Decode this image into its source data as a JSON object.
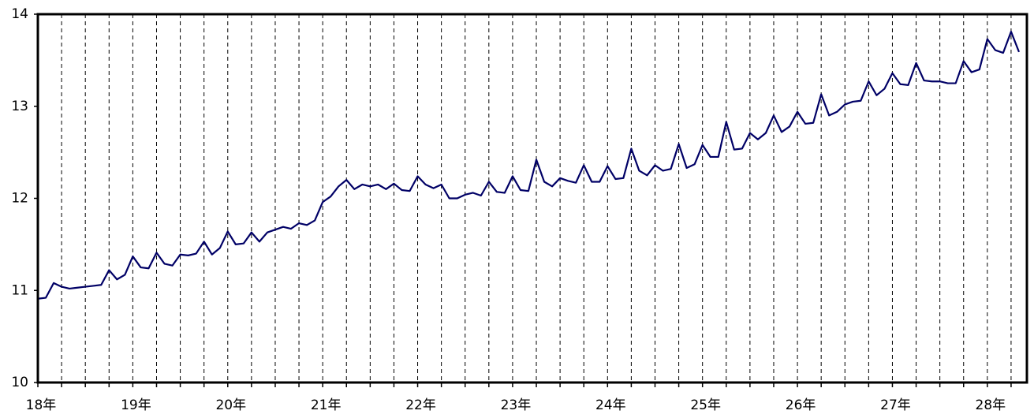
{
  "chart_data": {
    "type": "line",
    "categories": [
      "18年",
      null,
      null,
      null,
      null,
      null,
      null,
      null,
      null,
      null,
      null,
      null,
      "19年",
      null,
      null,
      null,
      null,
      null,
      null,
      null,
      null,
      null,
      null,
      null,
      "20年",
      null,
      null,
      null,
      null,
      null,
      null,
      null,
      null,
      null,
      null,
      null,
      "21年",
      null,
      null,
      null,
      null,
      null,
      null,
      null,
      null,
      null,
      null,
      null,
      "22年",
      null,
      null,
      null,
      null,
      null,
      null,
      null,
      null,
      null,
      null,
      null,
      "23年",
      null,
      null,
      null,
      null,
      null,
      null,
      null,
      null,
      null,
      null,
      null,
      "24年",
      null,
      null,
      null,
      null,
      null,
      null,
      null,
      null,
      null,
      null,
      null,
      "25年",
      null,
      null,
      null,
      null,
      null,
      null,
      null,
      null,
      null,
      null,
      null,
      "26年",
      null,
      null,
      null,
      null,
      null,
      null,
      null,
      null,
      null,
      null,
      null,
      "27年",
      null,
      null,
      null,
      null,
      null,
      null,
      null,
      null,
      null,
      null,
      null,
      "28年",
      null,
      null,
      null,
      null
    ],
    "series": [
      {
        "color": "#000066",
        "values": [
          10.91,
          10.92,
          11.08,
          11.04,
          11.02,
          11.03,
          11.04,
          11.05,
          11.06,
          11.22,
          11.12,
          11.17,
          11.37,
          11.25,
          11.24,
          11.41,
          11.29,
          11.27,
          11.39,
          11.38,
          11.4,
          11.53,
          11.39,
          11.46,
          11.64,
          11.5,
          11.51,
          11.63,
          11.53,
          11.63,
          11.66,
          11.69,
          11.67,
          11.73,
          11.71,
          11.76,
          11.96,
          12.02,
          12.13,
          12.2,
          12.1,
          12.15,
          12.13,
          12.15,
          12.1,
          12.16,
          12.09,
          12.08,
          12.24,
          12.15,
          12.11,
          12.15,
          12.0,
          12.0,
          12.04,
          12.06,
          12.03,
          12.18,
          12.07,
          12.06,
          12.24,
          12.09,
          12.08,
          12.42,
          12.18,
          12.13,
          12.22,
          12.19,
          12.17,
          12.36,
          12.18,
          12.18,
          12.35,
          12.21,
          12.22,
          12.54,
          12.3,
          12.25,
          12.36,
          12.3,
          12.32,
          12.59,
          12.33,
          12.37,
          12.58,
          12.45,
          12.45,
          12.83,
          12.53,
          12.54,
          12.71,
          12.64,
          12.71,
          12.9,
          12.72,
          12.78,
          12.94,
          12.81,
          12.82,
          13.13,
          12.9,
          12.94,
          13.02,
          13.05,
          13.06,
          13.27,
          13.12,
          13.19,
          13.36,
          13.24,
          13.23,
          13.47,
          13.28,
          13.27,
          13.27,
          13.25,
          13.25,
          13.49,
          13.37,
          13.4,
          13.73,
          13.61,
          13.58,
          13.81,
          13.59
        ]
      }
    ],
    "ylim": [
      10,
      14
    ],
    "yticks": [
      10,
      11,
      12,
      13,
      14
    ],
    "grid": true
  }
}
